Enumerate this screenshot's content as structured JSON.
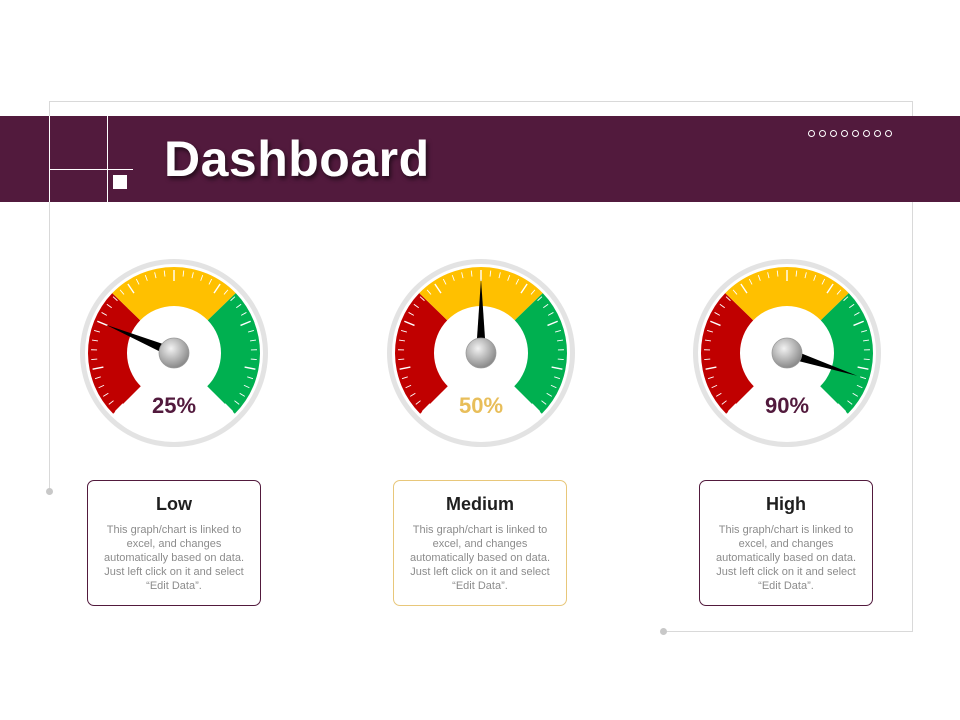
{
  "header": {
    "title": "Dashboard",
    "bar_color": "#521a3d",
    "dot_count": 8
  },
  "gauges": [
    {
      "value": 25,
      "label": "25%",
      "color": "#521a3d"
    },
    {
      "value": 50,
      "label": "50%",
      "color": "#e8be5a"
    },
    {
      "value": 90,
      "label": "90%",
      "color": "#521a3d"
    }
  ],
  "cards": [
    {
      "title": "Low",
      "text": "This graph/chart is linked to excel, and changes automatically based on data. Just left click on it and select “Edit Data”.",
      "border_color": "#521a3d"
    },
    {
      "title": "Medium",
      "text": "This graph/chart is linked to excel, and changes automatically based on data. Just left click on it and select “Edit Data”.",
      "border_color": "#e8c77a"
    },
    {
      "title": "High",
      "text": "This graph/chart is linked to excel, and changes automatically based on data. Just left click on it and select “Edit Data”.",
      "border_color": "#521a3d"
    }
  ],
  "gauge_zone_colors": {
    "low": "#c00000",
    "medium": "#ffc000",
    "high": "#00b050"
  }
}
